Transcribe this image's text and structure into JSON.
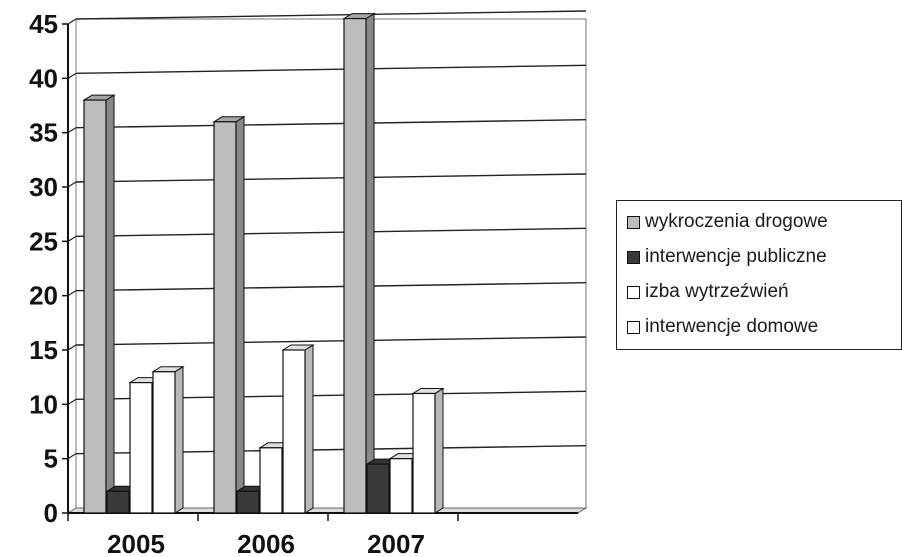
{
  "chart_data": {
    "type": "bar",
    "categories": [
      "2005",
      "2006",
      "2007"
    ],
    "series": [
      {
        "name": "wykroczenia drogowe",
        "values": [
          38,
          36,
          45.5
        ],
        "color": "#bdbdbd"
      },
      {
        "name": "interwencje publiczne",
        "values": [
          2,
          2,
          4.5
        ],
        "color": "#3a3a3a"
      },
      {
        "name": "izba wytrzeźwień",
        "values": [
          12,
          6,
          5
        ],
        "color": "#ffffff"
      },
      {
        "name": "interwencje domowe",
        "values": [
          13,
          15,
          11
        ],
        "color": "#ffffff"
      }
    ],
    "y_ticks": [
      "0",
      "5",
      "10",
      "15",
      "20",
      "25",
      "30",
      "35",
      "40",
      "45"
    ],
    "ylim": [
      0,
      45
    ],
    "grid": true,
    "legend_position": "right",
    "bar_style": "3d"
  }
}
